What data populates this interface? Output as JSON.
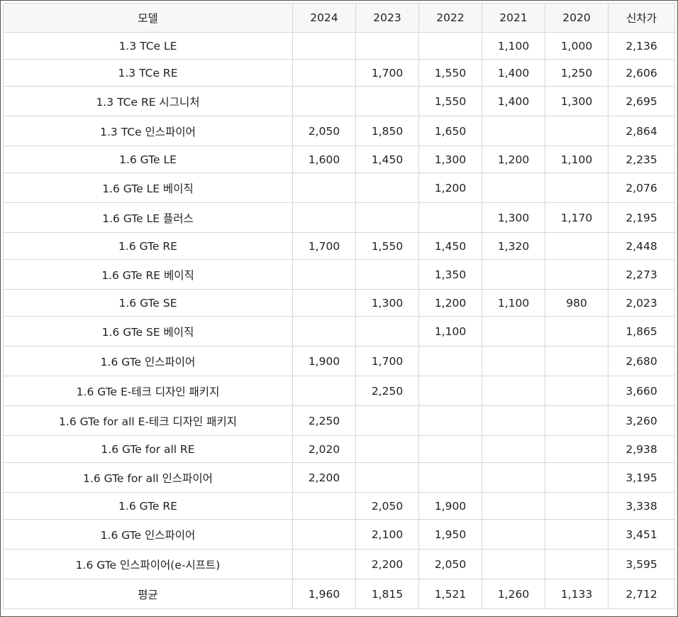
{
  "table": {
    "columns": [
      "모델",
      "2024",
      "2023",
      "2022",
      "2021",
      "2020",
      "신차가"
    ],
    "rows": [
      [
        "1.3 TCe LE",
        "",
        "",
        "",
        "1,100",
        "1,000",
        "2,136"
      ],
      [
        "1.3 TCe RE",
        "",
        "1,700",
        "1,550",
        "1,400",
        "1,250",
        "2,606"
      ],
      [
        "1.3 TCe RE 시그니처",
        "",
        "",
        "1,550",
        "1,400",
        "1,300",
        "2,695"
      ],
      [
        "1.3 TCe 인스파이어",
        "2,050",
        "1,850",
        "1,650",
        "",
        "",
        "2,864"
      ],
      [
        "1.6 GTe LE",
        "1,600",
        "1,450",
        "1,300",
        "1,200",
        "1,100",
        "2,235"
      ],
      [
        "1.6 GTe LE 베이직",
        "",
        "",
        "1,200",
        "",
        "",
        "2,076"
      ],
      [
        "1.6 GTe LE 플러스",
        "",
        "",
        "",
        "1,300",
        "1,170",
        "2,195"
      ],
      [
        "1.6 GTe RE",
        "1,700",
        "1,550",
        "1,450",
        "1,320",
        "",
        "2,448"
      ],
      [
        "1.6 GTe RE 베이직",
        "",
        "",
        "1,350",
        "",
        "",
        "2,273"
      ],
      [
        "1.6 GTe SE",
        "",
        "1,300",
        "1,200",
        "1,100",
        "980",
        "2,023"
      ],
      [
        "1.6 GTe SE 베이직",
        "",
        "",
        "1,100",
        "",
        "",
        "1,865"
      ],
      [
        "1.6 GTe 인스파이어",
        "1,900",
        "1,700",
        "",
        "",
        "",
        "2,680"
      ],
      [
        "1.6 GTe E-테크 디자인 패키지",
        "",
        "2,250",
        "",
        "",
        "",
        "3,660"
      ],
      [
        "1.6 GTe for all E-테크 디자인 패키지",
        "2,250",
        "",
        "",
        "",
        "",
        "3,260"
      ],
      [
        "1.6 GTe for all RE",
        "2,020",
        "",
        "",
        "",
        "",
        "2,938"
      ],
      [
        "1.6 GTe for all 인스파이어",
        "2,200",
        "",
        "",
        "",
        "",
        "3,195"
      ],
      [
        "1.6 GTe RE",
        "",
        "2,050",
        "1,900",
        "",
        "",
        "3,338"
      ],
      [
        "1.6 GTe 인스파이어",
        "",
        "2,100",
        "1,950",
        "",
        "",
        "3,451"
      ],
      [
        "1.6 GTe 인스파이어(e-시프트)",
        "",
        "2,200",
        "2,050",
        "",
        "",
        "3,595"
      ],
      [
        "평균",
        "1,960",
        "1,815",
        "1,521",
        "1,260",
        "1,133",
        "2,712"
      ]
    ]
  }
}
